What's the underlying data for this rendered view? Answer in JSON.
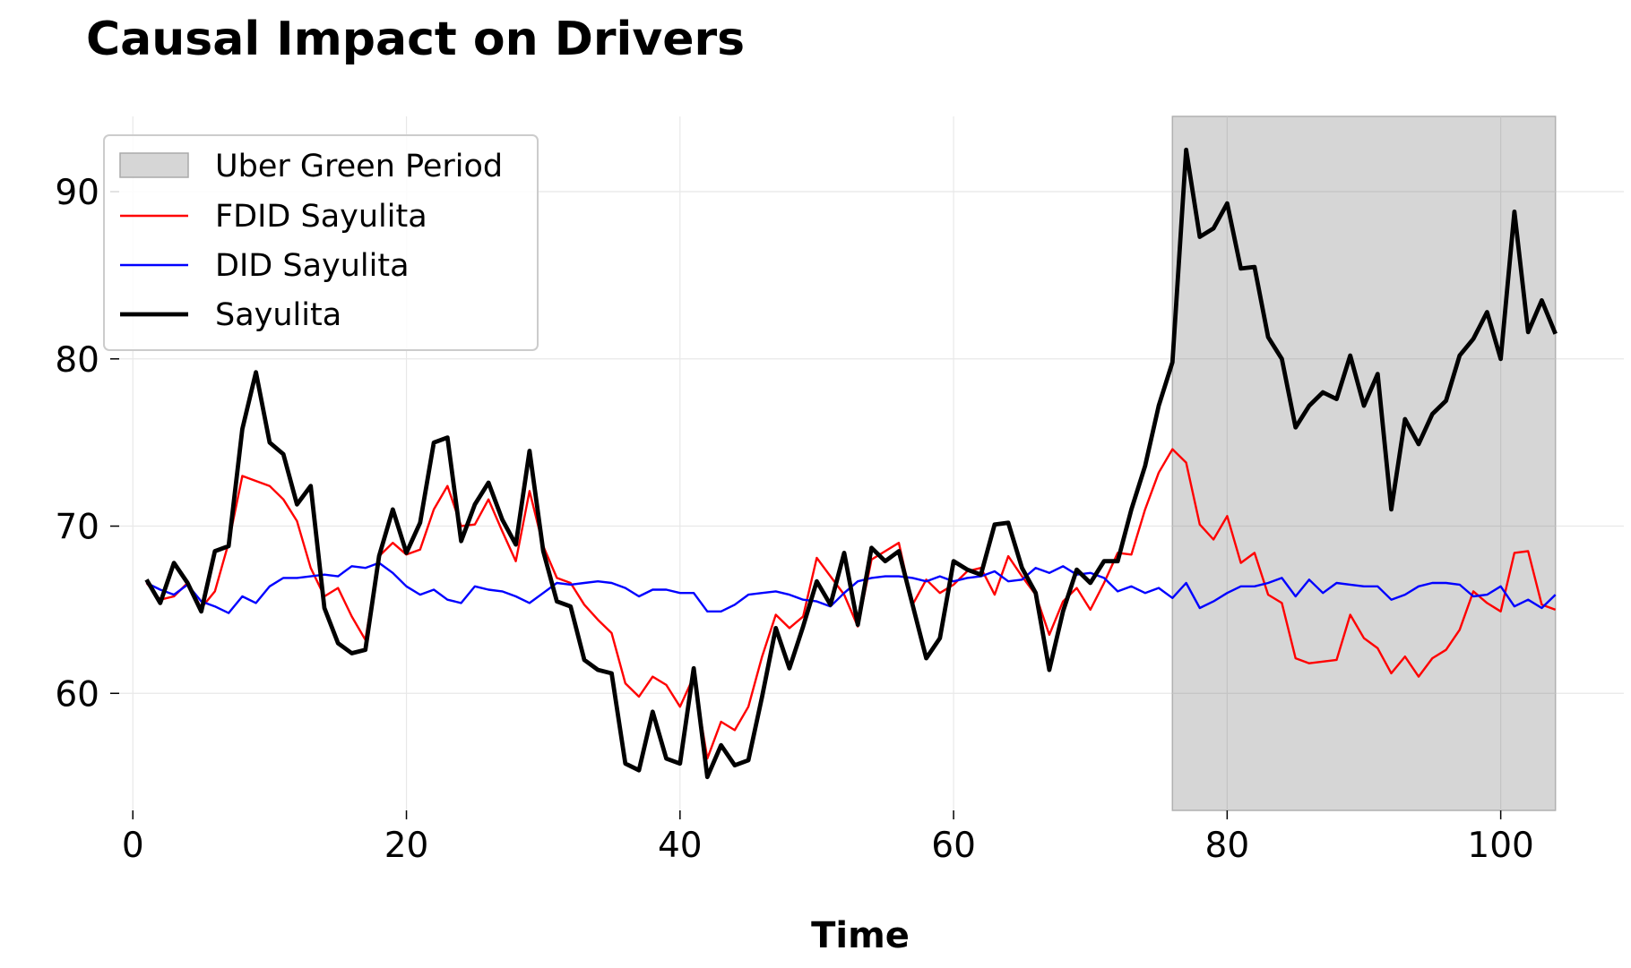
{
  "chart_data": {
    "type": "line",
    "title": "Causal Impact on Drivers",
    "xlabel": "Time",
    "ylabel": "",
    "xlim": [
      -1,
      109
    ],
    "ylim": [
      53,
      94.5
    ],
    "x_ticks": [
      0,
      20,
      40,
      60,
      80,
      100
    ],
    "y_ticks": [
      60,
      70,
      80,
      90
    ],
    "grid": true,
    "legend_position": "top-left",
    "shaded_region": {
      "label": "Uber Green Period",
      "x_start": 76,
      "x_end": 104,
      "color": "#d6d6d6"
    },
    "x": [
      1,
      2,
      3,
      4,
      5,
      6,
      7,
      8,
      9,
      10,
      11,
      12,
      13,
      14,
      15,
      16,
      17,
      18,
      19,
      20,
      21,
      22,
      23,
      24,
      25,
      26,
      27,
      28,
      29,
      30,
      31,
      32,
      33,
      34,
      35,
      36,
      37,
      38,
      39,
      40,
      41,
      42,
      43,
      44,
      45,
      46,
      47,
      48,
      49,
      50,
      51,
      52,
      53,
      54,
      55,
      56,
      57,
      58,
      59,
      60,
      61,
      62,
      63,
      64,
      65,
      66,
      67,
      68,
      69,
      70,
      71,
      72,
      73,
      74,
      75,
      76,
      77,
      78,
      79,
      80,
      81,
      82,
      83,
      84,
      85,
      86,
      87,
      88,
      89,
      90,
      91,
      92,
      93,
      94,
      95,
      96,
      97,
      98,
      99,
      100,
      101,
      102,
      103,
      104
    ],
    "series": [
      {
        "name": "FDID Sayulita",
        "color": "#ff0000",
        "line_width": 1.5,
        "values": [
          66.6,
          65.6,
          65.8,
          66.6,
          65.1,
          66.1,
          69.0,
          73.0,
          72.7,
          72.4,
          71.6,
          70.3,
          67.5,
          65.8,
          66.3,
          64.6,
          63.2,
          68.2,
          69.0,
          68.3,
          68.6,
          71.0,
          72.4,
          70.0,
          70.1,
          71.6,
          69.7,
          67.9,
          72.1,
          68.8,
          66.9,
          66.6,
          65.3,
          64.4,
          63.6,
          60.6,
          59.8,
          61.0,
          60.5,
          59.2,
          61.0,
          56.1,
          58.3,
          57.8,
          59.2,
          62.2,
          64.7,
          63.9,
          64.6,
          68.1,
          67.0,
          65.9,
          64.0,
          68.0,
          68.5,
          69.0,
          65.3,
          66.8,
          66.0,
          66.5,
          67.3,
          67.5,
          65.9,
          68.2,
          67.0,
          65.9,
          63.5,
          65.5,
          66.3,
          65.0,
          66.6,
          68.4,
          68.3,
          71.0,
          73.2,
          74.6,
          73.8,
          70.1,
          69.2,
          70.6,
          67.8,
          68.4,
          65.9,
          65.4,
          62.1,
          61.8,
          61.9,
          62.0,
          64.7,
          63.3,
          62.7,
          61.2,
          62.2,
          61.0,
          62.1,
          62.6,
          63.8,
          66.1,
          65.4,
          64.9,
          68.4,
          68.5,
          65.3,
          65.0
        ]
      },
      {
        "name": "DID Sayulita",
        "color": "#0000ff",
        "line_width": 1.5,
        "values": [
          66.6,
          66.2,
          65.9,
          66.5,
          65.5,
          65.2,
          64.8,
          65.8,
          65.4,
          66.4,
          66.9,
          66.9,
          67.0,
          67.1,
          67.0,
          67.6,
          67.5,
          67.8,
          67.2,
          66.4,
          65.9,
          66.2,
          65.6,
          65.4,
          66.4,
          66.2,
          66.1,
          65.8,
          65.4,
          66.0,
          66.6,
          66.5,
          66.6,
          66.7,
          66.6,
          66.3,
          65.8,
          66.2,
          66.2,
          66.0,
          66.0,
          64.9,
          64.9,
          65.3,
          65.9,
          66.0,
          66.1,
          65.9,
          65.6,
          65.5,
          65.2,
          66.0,
          66.7,
          66.9,
          67.0,
          67.0,
          66.9,
          66.7,
          67.0,
          66.7,
          66.9,
          67.0,
          67.3,
          66.7,
          66.8,
          67.5,
          67.2,
          67.6,
          67.1,
          67.2,
          66.9,
          66.1,
          66.4,
          66.0,
          66.3,
          65.7,
          66.6,
          65.1,
          65.5,
          66.0,
          66.4,
          66.4,
          66.6,
          66.9,
          65.8,
          66.8,
          66.0,
          66.6,
          66.5,
          66.4,
          66.4,
          65.6,
          65.9,
          66.4,
          66.6,
          66.6,
          66.5,
          65.8,
          65.9,
          66.4,
          65.2,
          65.6,
          65.1,
          65.9
        ]
      },
      {
        "name": "Sayulita",
        "color": "#000000",
        "line_width": 3,
        "values": [
          66.8,
          65.4,
          67.8,
          66.6,
          64.9,
          68.5,
          68.8,
          75.8,
          79.2,
          75.0,
          74.3,
          71.3,
          72.4,
          65.1,
          63.0,
          62.4,
          62.6,
          68.2,
          71.0,
          68.4,
          70.2,
          75.0,
          75.3,
          69.1,
          71.3,
          72.6,
          70.4,
          68.9,
          74.5,
          68.5,
          65.5,
          65.2,
          62.0,
          61.4,
          61.2,
          55.8,
          55.4,
          58.9,
          56.1,
          55.8,
          61.5,
          55.0,
          56.9,
          55.7,
          56.0,
          59.8,
          63.9,
          61.5,
          64.0,
          66.7,
          65.3,
          68.4,
          64.1,
          68.7,
          67.9,
          68.5,
          65.3,
          62.1,
          63.3,
          67.9,
          67.4,
          67.1,
          70.1,
          70.2,
          67.5,
          66.0,
          61.4,
          64.9,
          67.4,
          66.6,
          67.9,
          67.9,
          71.0,
          73.6,
          77.2,
          79.8,
          92.5,
          87.3,
          87.8,
          89.3,
          85.4,
          85.5,
          81.3,
          80.0,
          75.9,
          77.2,
          78.0,
          77.6,
          80.2,
          77.2,
          79.1,
          71.0,
          76.4,
          74.9,
          76.7,
          77.5,
          80.2,
          81.2,
          82.8,
          80.0,
          88.8,
          81.6,
          83.5,
          81.5
        ]
      }
    ]
  }
}
